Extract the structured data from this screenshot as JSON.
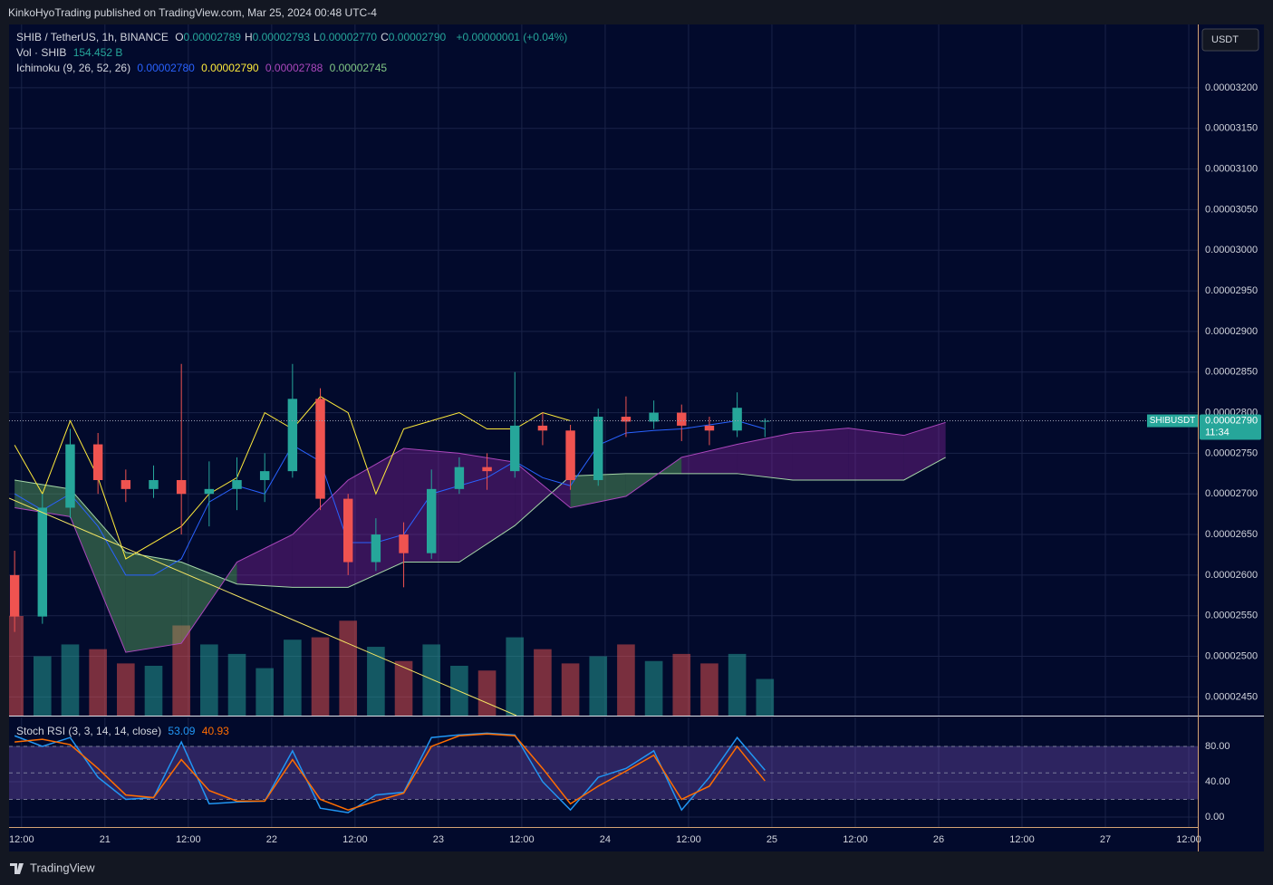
{
  "header": {
    "publisher": "KinkoHyoTrading published on TradingView.com, Mar 25, 2024 00:48 UTC-4"
  },
  "currency": "USDT",
  "footer": "TradingView",
  "chart_data": [
    {
      "type": "candlestick",
      "title": "SHIB / TetherUS, 1h, BINANCE",
      "ohlc_legend": [
        {
          "key": "O",
          "value": "0.00002789"
        },
        {
          "key": "H",
          "value": "0.00002793"
        },
        {
          "key": "L",
          "value": "0.00002770"
        },
        {
          "key": "C",
          "value": "0.00002790"
        }
      ],
      "change": "+0.00000001 (+0.04%)",
      "x": [
        -1,
        3,
        7,
        11,
        15,
        19,
        23,
        27,
        31,
        35,
        39,
        43,
        47,
        51,
        55,
        59,
        63,
        67,
        71,
        75,
        79,
        83,
        87,
        91,
        95,
        99,
        103,
        107
      ],
      "open": [
        2.6e-05,
        2.549e-05,
        2.683e-05,
        2.761e-05,
        2.717e-05,
        2.706e-05,
        2.717e-05,
        2.7e-05,
        2.706e-05,
        2.717e-05,
        2.728e-05,
        2.817e-05,
        2.694e-05,
        2.616e-05,
        2.65e-05,
        2.627e-05,
        2.706e-05,
        2.733e-05,
        2.728e-05,
        2.784e-05,
        2.778e-05,
        2.717e-05,
        2.795e-05,
        2.789e-05,
        2.8e-05,
        2.784e-05,
        2.778e-05,
        2.789e-05
      ],
      "high": [
        2.63e-05,
        2.7e-05,
        2.78e-05,
        2.775e-05,
        2.73e-05,
        2.735e-05,
        2.86e-05,
        2.74e-05,
        2.745e-05,
        2.75e-05,
        2.86e-05,
        2.83e-05,
        2.7e-05,
        2.67e-05,
        2.665e-05,
        2.73e-05,
        2.745e-05,
        2.75e-05,
        2.85e-05,
        2.8e-05,
        2.785e-05,
        2.805e-05,
        2.82e-05,
        2.815e-05,
        2.81e-05,
        2.795e-05,
        2.825e-05,
        2.793e-05
      ],
      "low": [
        2.53e-05,
        2.54e-05,
        2.67e-05,
        2.7e-05,
        2.69e-05,
        2.695e-05,
        2.65e-05,
        2.66e-05,
        2.68e-05,
        2.69e-05,
        2.72e-05,
        2.68e-05,
        2.6e-05,
        2.605e-05,
        2.585e-05,
        2.62e-05,
        2.7e-05,
        2.705e-05,
        2.72e-05,
        2.76e-05,
        2.705e-05,
        2.71e-05,
        2.77e-05,
        2.78e-05,
        2.765e-05,
        2.76e-05,
        2.77e-05,
        2.77e-05
      ],
      "close": [
        2.549e-05,
        2.683e-05,
        2.761e-05,
        2.717e-05,
        2.706e-05,
        2.717e-05,
        2.7e-05,
        2.706e-05,
        2.717e-05,
        2.728e-05,
        2.817e-05,
        2.694e-05,
        2.616e-05,
        2.65e-05,
        2.627e-05,
        2.706e-05,
        2.733e-05,
        2.728e-05,
        2.784e-05,
        2.778e-05,
        2.717e-05,
        2.795e-05,
        2.789e-05,
        2.8e-05,
        2.784e-05,
        2.778e-05,
        2.806e-05,
        2.79e-05
      ],
      "up_color": "#26a69a",
      "down_color": "#ef5350",
      "volume": {
        "name": "Vol · SHIB",
        "value_label": "154.452 B",
        "values": [
          420,
          250,
          300,
          280,
          220,
          210,
          380,
          300,
          260,
          200,
          320,
          330,
          400,
          290,
          230,
          300,
          210,
          190,
          330,
          280,
          220,
          250,
          300,
          230,
          260,
          220,
          260,
          154.452
        ]
      },
      "ichimoku": {
        "name": "Ichimoku (9, 26, 52, 26)",
        "legend": [
          "0.00002780",
          "0.00002790",
          "0.00002788",
          "0.00002745"
        ],
        "lines": [
          {
            "color": "#2962ff",
            "x": [
              -1,
              3,
              7,
              11,
              15,
              19,
              23,
              27,
              31,
              35,
              39,
              43,
              47,
              51,
              55,
              59,
              63,
              67,
              71,
              75,
              79,
              83,
              87,
              91,
              95,
              99,
              103,
              107
            ],
            "values": [
              2.7e-05,
              2.68e-05,
              2.7e-05,
              2.66e-05,
              2.6e-05,
              2.6e-05,
              2.62e-05,
              2.69e-05,
              2.71e-05,
              2.7e-05,
              2.76e-05,
              2.74e-05,
              2.64e-05,
              2.64e-05,
              2.65e-05,
              2.7e-05,
              2.71e-05,
              2.72e-05,
              2.74e-05,
              2.72e-05,
              2.71e-05,
              2.76e-05,
              2.775e-05,
              2.778e-05,
              2.78e-05,
              2.785e-05,
              2.79e-05,
              2.78e-05
            ]
          },
          {
            "color": "#ffeb3b",
            "x": [
              -1,
              3,
              7,
              11,
              15,
              19,
              23,
              27,
              31,
              35,
              39,
              43,
              47,
              51,
              55,
              59,
              63,
              67,
              71,
              75,
              79
            ],
            "values": [
              2.76e-05,
              2.7e-05,
              2.79e-05,
              2.72e-05,
              2.62e-05,
              2.64e-05,
              2.66e-05,
              2.7e-05,
              2.72e-05,
              2.8e-05,
              2.78e-05,
              2.82e-05,
              2.8e-05,
              2.7e-05,
              2.78e-05,
              2.79e-05,
              2.8e-05,
              2.78e-05,
              2.78e-05,
              2.8e-05,
              2.79e-05
            ]
          }
        ],
        "cloud": {
          "x": [
            -1,
            7,
            15,
            23,
            31,
            39,
            47,
            55,
            63,
            71,
            79,
            87,
            95,
            103,
            111,
            119,
            127,
            133
          ],
          "span_a": [
            2.717e-05,
            2.706e-05,
            2.628e-05,
            2.616e-05,
            2.589e-05,
            2.585e-05,
            2.585e-05,
            2.616e-05,
            2.616e-05,
            2.661e-05,
            2.722e-05,
            2.725e-05,
            2.725e-05,
            2.725e-05,
            2.717e-05,
            2.717e-05,
            2.717e-05,
            2.745e-05
          ],
          "span_b": [
            2.683e-05,
            2.672e-05,
            2.505e-05,
            2.516e-05,
            2.616e-05,
            2.65e-05,
            2.717e-05,
            2.756e-05,
            2.75e-05,
            2.739e-05,
            2.683e-05,
            2.697e-05,
            2.745e-05,
            2.761e-05,
            2.775e-05,
            2.781e-05,
            2.772e-05,
            2.788e-05
          ],
          "color_a": "#a5d6a7",
          "color_b": "#ab47bc",
          "up_fill": "rgba(102,187,106,0.40)",
          "down_fill": "rgba(156,39,176,0.35)"
        }
      },
      "last_price": {
        "symbol": "SHIBUSDT",
        "value": 2.79e-05,
        "label": "0.00002790",
        "countdown": "11:34"
      },
      "xlim": [
        -1.8,
        169.3
      ],
      "xticks": [
        {
          "value": 0,
          "label": "12:00"
        },
        {
          "value": 12,
          "label": "21"
        },
        {
          "value": 24,
          "label": "12:00"
        },
        {
          "value": 36,
          "label": "22"
        },
        {
          "value": 48,
          "label": "12:00"
        },
        {
          "value": 60,
          "label": "23"
        },
        {
          "value": 72,
          "label": "12:00"
        },
        {
          "value": 84,
          "label": "24"
        },
        {
          "value": 96,
          "label": "12:00"
        },
        {
          "value": 108,
          "label": "25"
        },
        {
          "value": 120,
          "label": "12:00"
        },
        {
          "value": 132,
          "label": "26"
        },
        {
          "value": 144,
          "label": "12:00"
        },
        {
          "value": 156,
          "label": "27"
        },
        {
          "value": 168,
          "label": "12:00"
        }
      ],
      "ylim": [
        2.427e-05,
        3.278e-05
      ],
      "yticks": [
        {
          "value": 2.45e-05,
          "label": "0.00002450"
        },
        {
          "value": 2.5e-05,
          "label": "0.00002500"
        },
        {
          "value": 2.55e-05,
          "label": "0.00002550"
        },
        {
          "value": 2.6e-05,
          "label": "0.00002600"
        },
        {
          "value": 2.65e-05,
          "label": "0.00002650"
        },
        {
          "value": 2.7e-05,
          "label": "0.00002700"
        },
        {
          "value": 2.75e-05,
          "label": "0.00002750"
        },
        {
          "value": 2.8e-05,
          "label": "0.00002800"
        },
        {
          "value": 2.85e-05,
          "label": "0.00002850"
        },
        {
          "value": 2.9e-05,
          "label": "0.00002900"
        },
        {
          "value": 2.95e-05,
          "label": "0.00002950"
        },
        {
          "value": 3e-05,
          "label": "0.00003000"
        },
        {
          "value": 3.05e-05,
          "label": "0.00003050"
        },
        {
          "value": 3.1e-05,
          "label": "0.00003100"
        },
        {
          "value": 3.15e-05,
          "label": "0.00003150"
        },
        {
          "value": 3.2e-05,
          "label": "0.00003200"
        }
      ],
      "grid": true
    },
    {
      "type": "line",
      "title": "Stoch RSI (3, 3, 14, 14, close)",
      "x": [
        -1,
        3,
        7,
        11,
        15,
        19,
        23,
        27,
        31,
        35,
        39,
        43,
        47,
        51,
        55,
        59,
        63,
        67,
        71,
        75,
        79,
        83,
        87,
        91,
        95,
        99,
        103,
        107
      ],
      "series": [
        {
          "color": "#2196f3",
          "values": [
            92,
            80,
            90,
            45,
            20,
            22,
            85,
            15,
            17,
            18,
            75,
            10,
            5,
            25,
            28,
            90,
            93,
            95,
            93,
            40,
            8,
            45,
            55,
            75,
            8,
            45,
            90,
            53.09
          ]
        },
        {
          "color": "#ff6d00",
          "values": [
            85,
            88,
            82,
            55,
            25,
            22,
            65,
            30,
            18,
            18,
            65,
            20,
            8,
            18,
            27,
            80,
            92,
            94,
            92,
            55,
            15,
            35,
            52,
            70,
            20,
            35,
            80,
            40.93
          ]
        }
      ],
      "ylim": [
        -11.3,
        109.7
      ],
      "yticks": [
        {
          "value": 0,
          "label": "0.00"
        },
        {
          "value": 40,
          "label": "40.00"
        },
        {
          "value": 80,
          "label": "80.00"
        }
      ],
      "bands": [
        20,
        50,
        80
      ],
      "band_fill": "rgba(126,87,194,0.35)",
      "grid": true
    }
  ]
}
